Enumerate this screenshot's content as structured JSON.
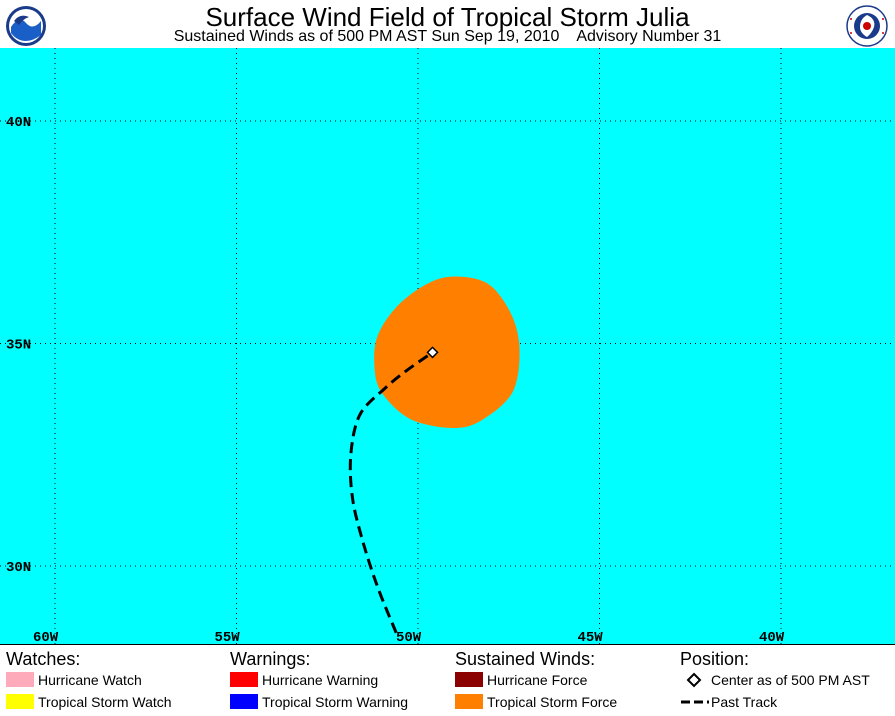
{
  "header": {
    "title": "Surface Wind Field of Tropical Storm Julia",
    "subtitle": "Sustained Winds as of 500 PM AST Sun Sep 19, 2010    Advisory Number 31",
    "logo_left": "NOAA",
    "logo_right": "NATIONAL WEATHER SERVICE"
  },
  "map": {
    "ocean_color": "#00ffff",
    "lat_labels": [
      "40N",
      "35N",
      "30N"
    ],
    "lon_labels": [
      "60W",
      "55W",
      "50W",
      "45W",
      "40W"
    ],
    "lats": [
      40,
      35,
      30
    ],
    "lons": [
      60,
      55,
      50,
      45,
      40
    ],
    "center": {
      "lat": 34.8,
      "lon": 49.6
    },
    "past_track": [
      {
        "lat": 28.5,
        "lon": 50.6
      },
      {
        "lat": 29.5,
        "lon": 51.1
      },
      {
        "lat": 30.5,
        "lon": 51.5
      },
      {
        "lat": 31.5,
        "lon": 51.8
      },
      {
        "lat": 32.5,
        "lon": 51.85
      },
      {
        "lat": 33.4,
        "lon": 51.6
      },
      {
        "lat": 34.0,
        "lon": 50.9
      },
      {
        "lat": 34.4,
        "lon": 50.3
      },
      {
        "lat": 34.8,
        "lon": 49.6
      }
    ],
    "tropical_storm_force_field": [
      {
        "lat": 36.5,
        "lon": 48.8
      },
      {
        "lat": 36.3,
        "lon": 48.0
      },
      {
        "lat": 35.6,
        "lon": 47.4
      },
      {
        "lat": 34.8,
        "lon": 47.2
      },
      {
        "lat": 33.9,
        "lon": 47.4
      },
      {
        "lat": 33.3,
        "lon": 48.2
      },
      {
        "lat": 33.1,
        "lon": 49.0
      },
      {
        "lat": 33.3,
        "lon": 50.2
      },
      {
        "lat": 33.9,
        "lon": 51.0
      },
      {
        "lat": 34.5,
        "lon": 51.2
      },
      {
        "lat": 35.2,
        "lon": 51.1
      },
      {
        "lat": 35.9,
        "lon": 50.5
      },
      {
        "lat": 36.4,
        "lon": 49.6
      }
    ]
  },
  "legend": {
    "watches": {
      "heading": "Watches:",
      "items": [
        {
          "label": "Hurricane Watch",
          "color": "#ffaabb"
        },
        {
          "label": "Tropical Storm Watch",
          "color": "#ffff00"
        }
      ]
    },
    "warnings": {
      "heading": "Warnings:",
      "items": [
        {
          "label": "Hurricane Warning",
          "color": "#ff0000"
        },
        {
          "label": "Tropical Storm Warning",
          "color": "#0000ff"
        }
      ]
    },
    "winds": {
      "heading": "Sustained Winds:",
      "items": [
        {
          "label": "Hurricane Force",
          "color": "#8b0000"
        },
        {
          "label": "Tropical Storm Force",
          "color": "#ff8000"
        }
      ]
    },
    "position": {
      "heading": "Position:",
      "items": [
        {
          "label": "Center as of 500 PM AST",
          "symbol": "diamond-icon"
        },
        {
          "label": "Past Track",
          "symbol": "dashed-line-icon"
        }
      ]
    }
  }
}
